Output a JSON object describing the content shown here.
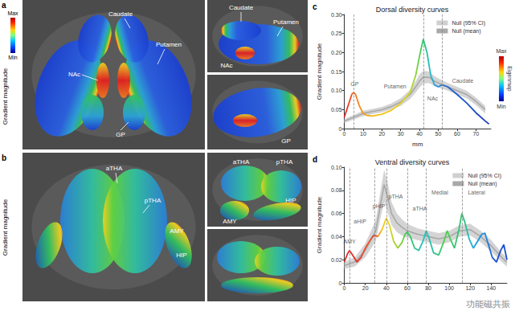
{
  "figure": {
    "panels": [
      {
        "letter": "a",
        "colorbar_title": "Gradient magnitude",
        "colorbar_max": "Max",
        "colorbar_min": "Min",
        "labels": [
          "Caudate",
          "Putamen",
          "NAc",
          "GP"
        ],
        "inset_top": [
          "Caudate",
          "Putamen",
          "NAc"
        ],
        "inset_bottom": [
          "GP"
        ]
      },
      {
        "letter": "b",
        "colorbar_title": "Gradient magnitude",
        "labels": [
          "aTHA",
          "pTHA",
          "AMY",
          "HIP"
        ],
        "inset_top": [
          "aTHA",
          "pTHA",
          "AMY",
          "HIP"
        ],
        "inset_bottom": []
      }
    ],
    "watermark": "功能磁共振"
  },
  "chart_data": [
    {
      "type": "line",
      "panel": "c",
      "title": "Dorsal diversity curves",
      "xlabel": "mm",
      "ylabel": "Gradient magnitude",
      "xlim": [
        0,
        78
      ],
      "xticks": [
        0,
        10,
        20,
        30,
        40,
        50,
        60,
        70
      ],
      "ylim": [
        0,
        0.3
      ],
      "yticks": [
        0,
        0.05,
        {
          "value": 0.1,
          "label": "0.10"
        },
        0.15,
        {
          "value": 0.2,
          "label": "0.20"
        },
        0.25,
        {
          "value": 0.3,
          "label": "0.30"
        }
      ],
      "grid": false,
      "legend": "upper right",
      "colorbar": {
        "title": "Eigenmap",
        "max_label": "Max",
        "min_label": "Min"
      },
      "series": [
        {
          "name": "Null (95% CI)",
          "type": "band",
          "color": "#cfcfcf",
          "x": [
            0,
            5,
            10,
            15,
            20,
            25,
            30,
            35,
            38,
            40,
            42,
            45,
            48,
            50,
            55,
            60,
            65,
            70,
            75
          ],
          "lower": [
            0.015,
            0.024,
            0.033,
            0.038,
            0.043,
            0.05,
            0.06,
            0.078,
            0.095,
            0.108,
            0.118,
            0.12,
            0.112,
            0.108,
            0.1,
            0.09,
            0.08,
            0.062,
            0.04
          ],
          "upper": [
            0.025,
            0.036,
            0.047,
            0.052,
            0.057,
            0.066,
            0.08,
            0.102,
            0.125,
            0.142,
            0.152,
            0.15,
            0.138,
            0.132,
            0.12,
            0.11,
            0.1,
            0.082,
            0.06
          ]
        },
        {
          "name": "Null (mean)",
          "type": "line",
          "color": "#a8a8a8",
          "line_style": "solid",
          "x": [
            0,
            5,
            10,
            15,
            20,
            25,
            30,
            35,
            38,
            40,
            42,
            45,
            48,
            50,
            55,
            60,
            65,
            70,
            75
          ],
          "values": [
            0.02,
            0.03,
            0.04,
            0.045,
            0.05,
            0.058,
            0.07,
            0.09,
            0.11,
            0.125,
            0.135,
            0.135,
            0.125,
            0.12,
            0.11,
            0.1,
            0.09,
            0.072,
            0.05
          ]
        },
        {
          "type": "line",
          "line_style": "solid",
          "x": [
            0,
            2,
            4,
            5,
            6,
            8,
            10,
            12,
            15,
            20,
            25,
            30,
            35,
            38,
            40,
            42,
            44,
            46,
            48,
            50,
            52,
            55,
            60,
            65,
            70,
            75,
            77
          ],
          "values": [
            0.03,
            0.06,
            0.09,
            0.095,
            0.09,
            0.06,
            0.04,
            0.035,
            0.033,
            0.038,
            0.048,
            0.066,
            0.095,
            0.14,
            0.19,
            0.235,
            0.2,
            0.14,
            0.115,
            0.11,
            0.115,
            0.11,
            0.09,
            0.068,
            0.042,
            0.02,
            0.012
          ],
          "colors": [
            "#e8302a",
            "#ea3a28",
            "#ee5a24",
            "#f06a22",
            "#f07a20",
            "#f08a1e",
            "#f09a1c",
            "#f2aa1a",
            "#f4b818",
            "#f5c518",
            "#f2cc1c",
            "#e8d420",
            "#c8d62a",
            "#8ed23a",
            "#5ccd4c",
            "#2fc870",
            "#24c2a0",
            "#22b8c8",
            "#2aa2d8",
            "#2a8ee0",
            "#267ad8",
            "#2068d0",
            "#1f5ccc",
            "#1d52c6",
            "#1c48c0",
            "#1a40b8",
            "#1a3ab0"
          ]
        }
      ],
      "peaks": [
        5,
        42,
        52
      ],
      "annotations": [
        {
          "text": "GP",
          "x": 5.5,
          "y": 0.117
        },
        {
          "text": "Putamen",
          "x": 27,
          "y": 0.11
        },
        {
          "text": "NAc",
          "x": 47,
          "y": 0.08
        },
        {
          "text": "Caudate",
          "x": 63,
          "y": 0.125
        }
      ]
    },
    {
      "type": "line",
      "panel": "d",
      "title": "Ventral diversity curves",
      "ylabel": "Gradient magnitude",
      "xlim": [
        0,
        155
      ],
      "xticks": [
        0,
        20,
        40,
        60,
        80,
        100,
        120,
        140
      ],
      "ylim": [
        0,
        0.1
      ],
      "yticks": [
        0,
        0.02,
        0.04,
        0.06,
        0.08,
        {
          "value": 0.1,
          "label": "0.10"
        }
      ],
      "grid": false,
      "legend": "upper right",
      "series": [
        {
          "name": "Null (95% CI)",
          "type": "band",
          "color": "#cfcfcf",
          "x": [
            0,
            10,
            20,
            30,
            35,
            38,
            41,
            45,
            50,
            55,
            60,
            70,
            80,
            90,
            100,
            110,
            120,
            130,
            140,
            150,
            155
          ],
          "lower": [
            0.012,
            0.014,
            0.022,
            0.036,
            0.058,
            0.07,
            0.062,
            0.05,
            0.044,
            0.041,
            0.039,
            0.037,
            0.035,
            0.033,
            0.035,
            0.04,
            0.041,
            0.035,
            0.027,
            0.018,
            0.014
          ],
          "upper": [
            0.018,
            0.022,
            0.034,
            0.054,
            0.082,
            0.098,
            0.088,
            0.07,
            0.06,
            0.055,
            0.051,
            0.047,
            0.045,
            0.043,
            0.045,
            0.05,
            0.051,
            0.045,
            0.037,
            0.026,
            0.022
          ]
        },
        {
          "name": "Null (mean)",
          "type": "line",
          "color": "#a8a8a8",
          "line_style": "solid",
          "x": [
            0,
            10,
            20,
            30,
            35,
            38,
            41,
            45,
            50,
            55,
            60,
            70,
            80,
            90,
            100,
            110,
            120,
            130,
            140,
            150,
            155
          ],
          "values": [
            0.015,
            0.018,
            0.028,
            0.045,
            0.07,
            0.085,
            0.075,
            0.06,
            0.052,
            0.048,
            0.045,
            0.042,
            0.04,
            0.038,
            0.04,
            0.045,
            0.046,
            0.04,
            0.032,
            0.022,
            0.018
          ]
        },
        {
          "type": "line",
          "line_style": "solid",
          "x": [
            0,
            3,
            5,
            8,
            12,
            16,
            20,
            24,
            27,
            29,
            32,
            36,
            40,
            43,
            47,
            51,
            55,
            58,
            60,
            63,
            67,
            71,
            75,
            78,
            81,
            85,
            90,
            95,
            98,
            101,
            105,
            109,
            112,
            115,
            119,
            123,
            127,
            131,
            134,
            137,
            141,
            145,
            149,
            152,
            155
          ],
          "values": [
            0.018,
            0.025,
            0.028,
            0.024,
            0.018,
            0.022,
            0.03,
            0.036,
            0.04,
            0.041,
            0.04,
            0.046,
            0.056,
            0.05,
            0.036,
            0.03,
            0.035,
            0.042,
            0.044,
            0.04,
            0.03,
            0.028,
            0.036,
            0.045,
            0.038,
            0.026,
            0.024,
            0.036,
            0.045,
            0.038,
            0.03,
            0.045,
            0.06,
            0.052,
            0.038,
            0.03,
            0.036,
            0.042,
            0.043,
            0.034,
            0.022,
            0.018,
            0.028,
            0.033,
            0.02
          ],
          "colors": [
            "#e0302a",
            "#e0302a",
            "#e0302a",
            "#e0302a",
            "#e0302a",
            "#e4402a",
            "#e8502a",
            "#ea5a28",
            "#e8452a",
            "#e0302a",
            "#ef8a20",
            "#f5c518",
            "#f2d21b",
            "#e8d420",
            "#b9d12c",
            "#9ccf34",
            "#7ccd40",
            "#4cc957",
            "#3ec95a",
            "#36c66a",
            "#30c48a",
            "#2cc3a0",
            "#22c2c0",
            "#22c2c0",
            "#26c1b0",
            "#2fbf9a",
            "#3cc680",
            "#4ccf4c",
            "#4ccf4c",
            "#44cb60",
            "#39c77a",
            "#2fc870",
            "#2fc870",
            "#2cc480",
            "#22b8c8",
            "#22a8d4",
            "#2098dc",
            "#1f8fe0",
            "#1f8fe0",
            "#1f7ad8",
            "#1f60d2",
            "#1f4fd0",
            "#1f4fd0",
            "#1f4fd0",
            "#1f4fd0"
          ]
        }
      ],
      "peaks": [
        5,
        29,
        40,
        60,
        78,
        112
      ],
      "annotations": [
        {
          "text": "AMY",
          "x": 5,
          "y": 0.036
        },
        {
          "text": "aHIP",
          "x": 15,
          "y": 0.053
        },
        {
          "text": "pHIP",
          "x": 33,
          "y": 0.066
        },
        {
          "text": "pTHA",
          "x": 49,
          "y": 0.075
        },
        {
          "text": "aTHA",
          "x": 72,
          "y": 0.064
        },
        {
          "text": "Medial",
          "x": 91,
          "y": 0.078
        },
        {
          "text": "Lateral",
          "x": 126,
          "y": 0.078
        }
      ]
    }
  ]
}
